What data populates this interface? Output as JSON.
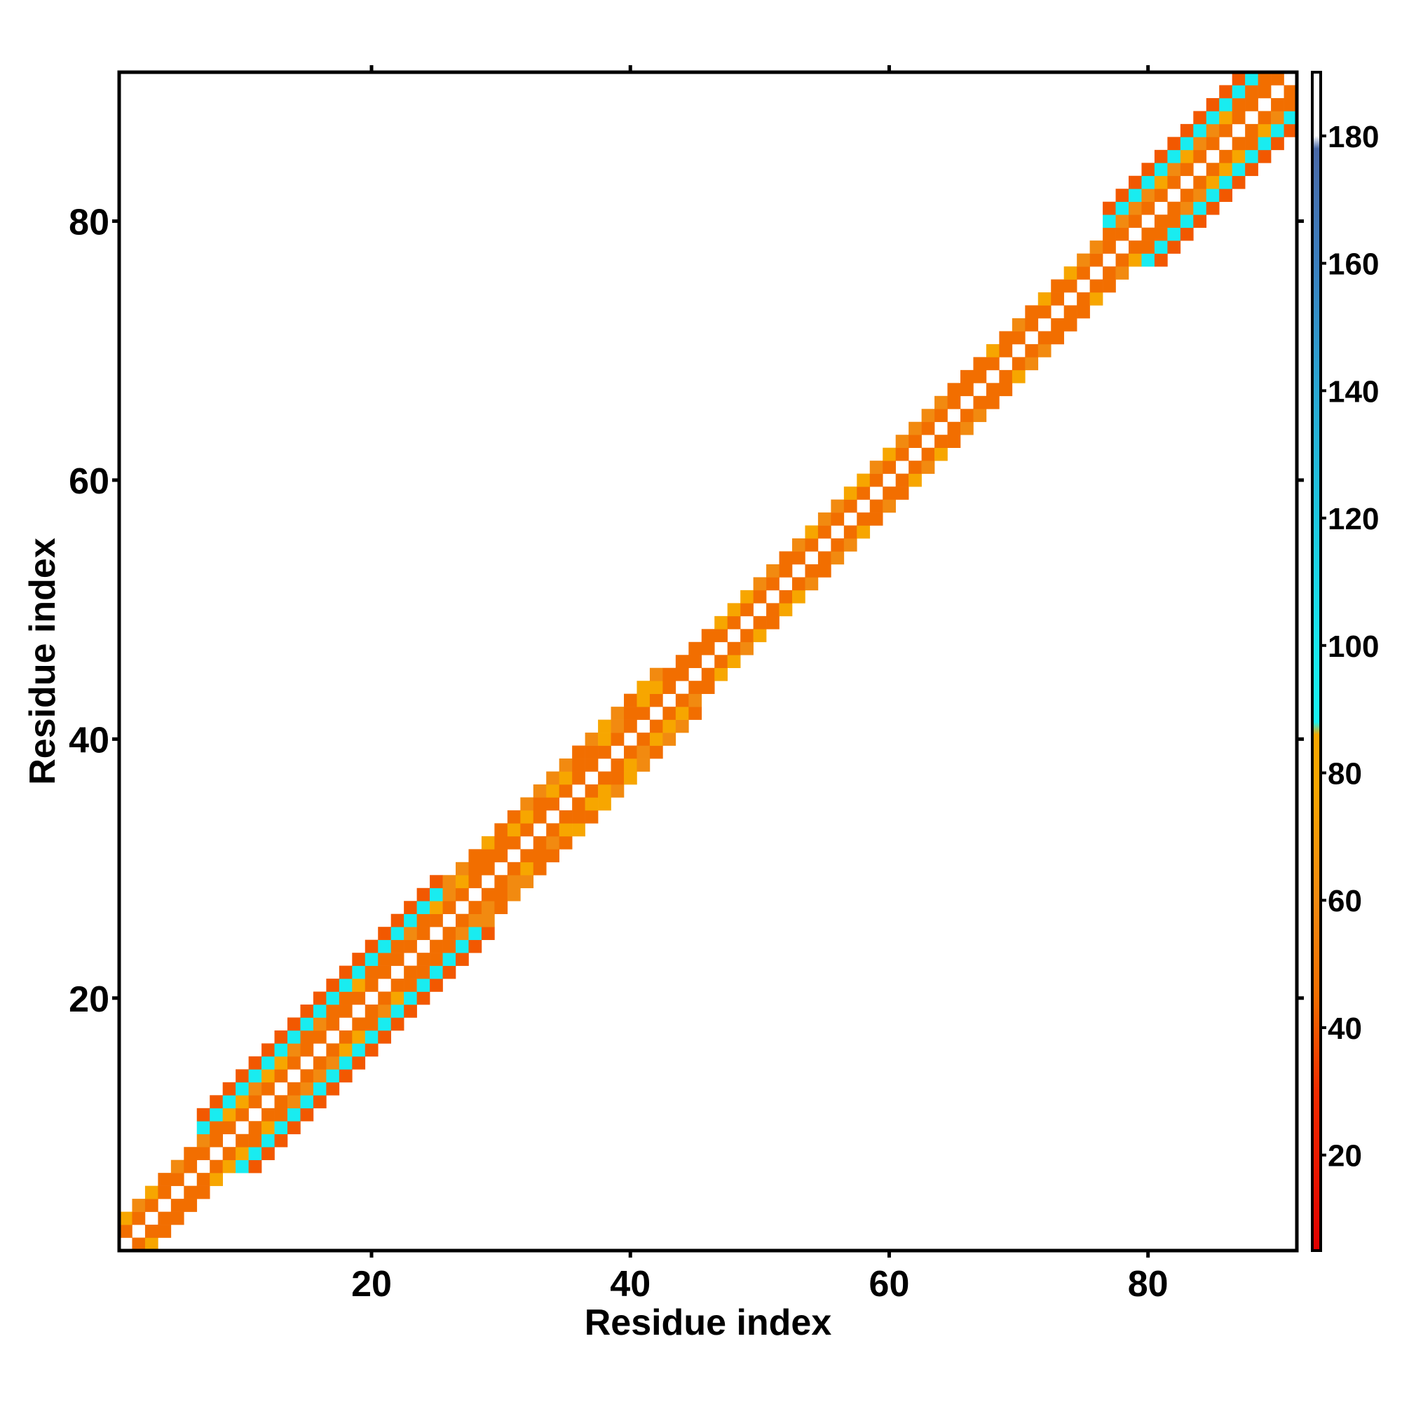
{
  "chart_data": {
    "type": "heatmap",
    "title": "",
    "xlabel": "Residue index",
    "ylabel": "Residue index",
    "xlim": [
      1,
      91
    ],
    "ylim": [
      1,
      91
    ],
    "xticks": [
      20,
      40,
      60,
      80
    ],
    "yticks": [
      20,
      40,
      60,
      80
    ],
    "grid": false,
    "description_of_pattern": "",
    "colorbar": {
      "ticks": [
        20,
        40,
        60,
        80,
        100,
        120,
        140,
        160,
        180
      ],
      "range": [
        5,
        190
      ],
      "stops": [
        {
          "value": 5,
          "color": "#e00000"
        },
        {
          "value": 30,
          "color": "#f22c00"
        },
        {
          "value": 45,
          "color": "#f26e00"
        },
        {
          "value": 60,
          "color": "#f28a10"
        },
        {
          "value": 78,
          "color": "#f7a600"
        },
        {
          "value": 86,
          "color": "#f7a600"
        },
        {
          "value": 88,
          "color": "#19f2f2"
        },
        {
          "value": 100,
          "color": "#19e8ef"
        },
        {
          "value": 120,
          "color": "#1ec8e0"
        },
        {
          "value": 140,
          "color": "#2aa8d4"
        },
        {
          "value": 160,
          "color": "#3b7fbf"
        },
        {
          "value": 178,
          "color": "#4a6aa8"
        },
        {
          "value": 180,
          "color": "#ffffff"
        },
        {
          "value": 190,
          "color": "#ffffff"
        }
      ]
    },
    "bands": [
      {
        "from": 1,
        "to": 9,
        "halfwidth": 2,
        "helix": false
      },
      {
        "from": 9,
        "to": 28,
        "halfwidth": 4,
        "helix": true
      },
      {
        "from": 28,
        "to": 45,
        "halfwidth": 3,
        "helix": false
      },
      {
        "from": 45,
        "to": 79,
        "halfwidth": 2,
        "helix": false
      },
      {
        "from": 79,
        "to": 92,
        "halfwidth": 4,
        "helix": true
      }
    ],
    "values": {
      "near_diagonal": [
        45,
        60,
        80
      ],
      "helix_i_i3": 95,
      "helix_i_i4": 40,
      "strand_offset": 20
    }
  }
}
